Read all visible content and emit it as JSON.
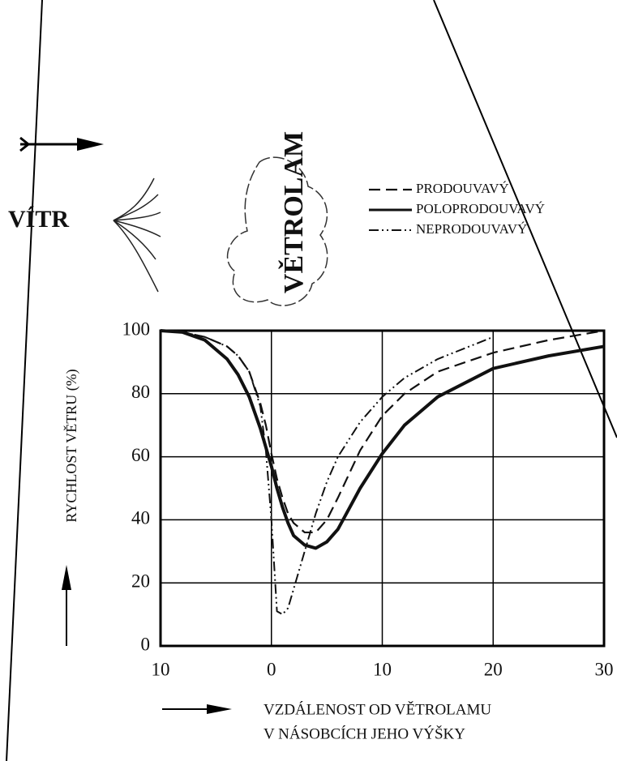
{
  "chart_data": {
    "type": "line",
    "wind_label": "VÍTR",
    "windbreak_label": "VĚTROLAM",
    "ylabel": "RYCHLOST VĚTRU (%)",
    "xlabel": [
      "VZDÁLENOST OD VĚTROLAMU",
      "V NÁSOBCÍCH JEHO VÝŠKY"
    ],
    "x": [
      -10,
      -8,
      -6,
      -4,
      -3,
      -2,
      -1,
      -0.5,
      0,
      0.5,
      1,
      1.5,
      2,
      3,
      4,
      5,
      6,
      8,
      10,
      12,
      15,
      20,
      25,
      30
    ],
    "series": [
      {
        "name": "PRODOUVAVÝ",
        "color": "#111111",
        "dash": "dashed",
        "values": [
          100,
          99.5,
          98,
          95,
          92,
          87,
          77,
          70,
          61,
          53,
          47,
          42,
          39,
          36,
          36,
          40,
          47,
          62,
          73,
          80,
          87,
          93,
          97,
          100
        ]
      },
      {
        "name": "POLOPRODOUVAVÝ",
        "color": "#111111",
        "dash": "solid",
        "values": [
          100,
          99.5,
          97,
          91,
          86,
          79,
          69,
          63,
          57,
          50,
          44,
          39,
          35,
          32,
          31,
          33,
          37,
          50,
          61,
          70,
          79,
          88,
          92,
          95
        ]
      },
      {
        "name": "NEPRODOUVAVÝ",
        "color": "#111111",
        "dash": "dashdotdot",
        "values": [
          100,
          99.5,
          98,
          95,
          92,
          87,
          76,
          62,
          40,
          11,
          10,
          12,
          18,
          30,
          42,
          52,
          60,
          71,
          79,
          85,
          91,
          98,
          null,
          null
        ]
      }
    ],
    "xlim": [
      -10,
      30
    ],
    "ylim": [
      0,
      100
    ],
    "xticks": [
      {
        "value": -10,
        "label": "10"
      },
      0,
      10,
      20,
      30
    ],
    "yticks": [
      0,
      20,
      40,
      60,
      80,
      100
    ],
    "grid": true
  }
}
